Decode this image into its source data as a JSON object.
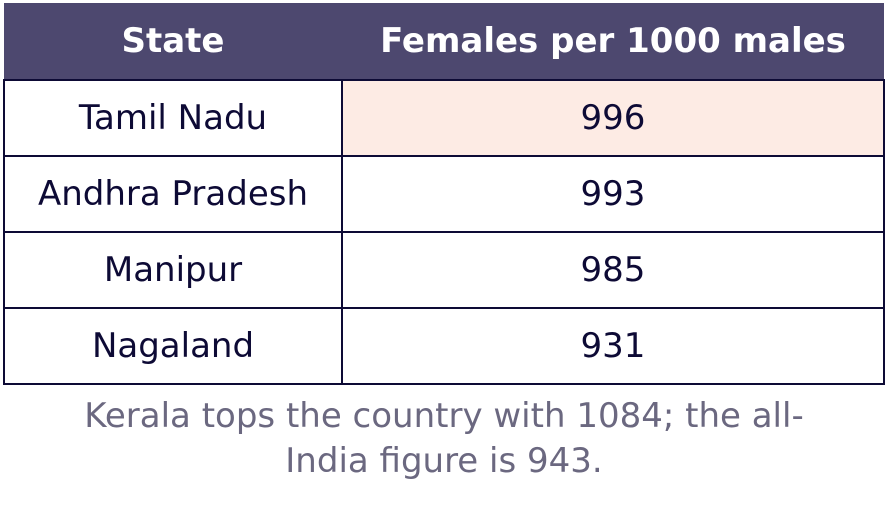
{
  "table": {
    "header": [
      "State",
      "Females per 1000 males"
    ],
    "rows": [
      [
        "Tamil Nadu",
        996
      ],
      [
        "Andhra Pradesh",
        993
      ],
      [
        "Manipur",
        985
      ],
      [
        "Nagaland",
        931
      ]
    ]
  },
  "caption": "Kerala tops the country with 1084; the all-India figure is 943."
}
